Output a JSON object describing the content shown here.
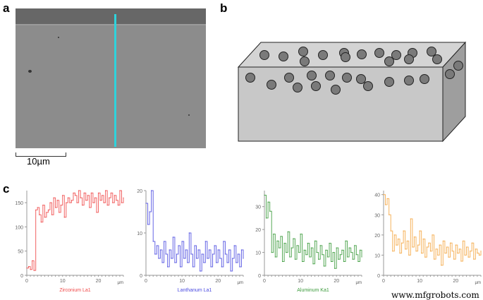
{
  "panels": {
    "a": "a",
    "b": "b",
    "c": "c"
  },
  "sem": {
    "scale_bar_label": "10µm",
    "line_color": "#2ed3dc"
  },
  "watermark": "www.mfgrobots.com",
  "chart_data": [
    {
      "type": "line",
      "title": "",
      "legend_label": "Zirconium La1",
      "color": "#f04848",
      "xlabel": "µm",
      "xlim": [
        0,
        27
      ],
      "ylim": [
        0,
        175
      ],
      "xticks": [
        0,
        10,
        20
      ],
      "yticks": [
        0,
        50,
        100,
        150
      ],
      "x_step": 0.5,
      "values": [
        15,
        18,
        12,
        30,
        10,
        135,
        140,
        125,
        110,
        145,
        120,
        130,
        135,
        150,
        125,
        160,
        140,
        155,
        130,
        145,
        165,
        120,
        150,
        160,
        150,
        155,
        170,
        165,
        150,
        175,
        160,
        145,
        170,
        155,
        165,
        140,
        170,
        150,
        160,
        130,
        170,
        155,
        165,
        150,
        175,
        145,
        160,
        170,
        150,
        165,
        155,
        145,
        175,
        150,
        160
      ]
    },
    {
      "type": "line",
      "title": "",
      "legend_label": "Lanthanum La1",
      "color": "#4a4ae0",
      "xlabel": "µm",
      "xlim": [
        0,
        27
      ],
      "ylim": [
        0,
        20
      ],
      "xticks": [
        0,
        10,
        20
      ],
      "yticks": [
        0,
        10,
        20
      ],
      "x_step": 0.5,
      "values": [
        17,
        12,
        15,
        20,
        8,
        5,
        7,
        4,
        6,
        3,
        8,
        5,
        2,
        6,
        4,
        9,
        3,
        5,
        7,
        2,
        8,
        4,
        6,
        3,
        10,
        5,
        2,
        7,
        4,
        6,
        1,
        5,
        3,
        8,
        4,
        6,
        2,
        5,
        7,
        3,
        6,
        4,
        2,
        8,
        5,
        3,
        6,
        1,
        4,
        7,
        3,
        5,
        2,
        6,
        4
      ]
    },
    {
      "type": "line",
      "title": "",
      "legend_label": "Aluminum Ka1",
      "color": "#3a9a3a",
      "xlabel": "µm",
      "xlim": [
        0,
        27
      ],
      "ylim": [
        0,
        37
      ],
      "xticks": [
        0,
        10,
        20
      ],
      "yticks": [
        0,
        10,
        20,
        30
      ],
      "x_step": 0.5,
      "values": [
        35,
        25,
        32,
        28,
        10,
        18,
        8,
        15,
        12,
        17,
        6,
        14,
        10,
        19,
        8,
        12,
        16,
        7,
        13,
        10,
        18,
        6,
        11,
        9,
        14,
        8,
        12,
        5,
        15,
        10,
        7,
        13,
        9,
        4,
        11,
        8,
        14,
        6,
        10,
        3,
        12,
        7,
        9,
        11,
        6,
        15,
        8,
        12,
        10,
        7,
        13,
        9,
        6,
        11,
        8
      ]
    },
    {
      "type": "line",
      "title": "",
      "legend_label": "",
      "color": "#f5a640",
      "xlabel": "µm",
      "xlim": [
        0,
        27
      ],
      "ylim": [
        0,
        42
      ],
      "xticks": [
        0,
        10,
        20
      ],
      "yticks": [
        0,
        10,
        20,
        30,
        40
      ],
      "x_step": 0.5,
      "values": [
        40,
        35,
        38,
        30,
        22,
        12,
        20,
        15,
        18,
        11,
        16,
        22,
        13,
        17,
        10,
        28,
        14,
        19,
        12,
        15,
        22,
        11,
        18,
        9,
        14,
        16,
        12,
        20,
        8,
        13,
        10,
        15,
        5,
        17,
        11,
        14,
        9,
        16,
        12,
        8,
        15,
        11,
        13,
        7,
        17,
        10,
        14,
        9,
        12,
        16,
        8,
        13,
        11,
        10,
        12
      ]
    }
  ]
}
